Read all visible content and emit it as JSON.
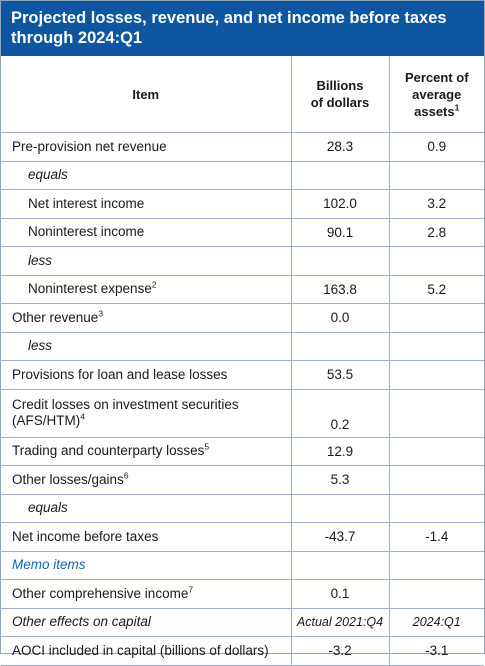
{
  "title": {
    "line1": "Projected losses, revenue, and net income before taxes",
    "line2": "through 2024:Q1"
  },
  "header": {
    "item": "Item",
    "billions_line1": "Billions",
    "billions_line2": "of dollars",
    "percent_line1": "Percent of",
    "percent_line2": "average",
    "percent_line3": "assets",
    "percent_note": "1"
  },
  "rows": [
    {
      "label": "Pre-provision net revenue",
      "note": "",
      "billions": "28.3",
      "percent": "0.9"
    },
    {
      "label": "equals",
      "note": "",
      "billions": "",
      "percent": ""
    },
    {
      "label": "Net interest income",
      "note": "",
      "billions": "102.0",
      "percent": "3.2"
    },
    {
      "label": "Noninterest income",
      "note": "",
      "billions": "90.1",
      "percent": "2.8"
    },
    {
      "label": "less",
      "note": "",
      "billions": "",
      "percent": ""
    },
    {
      "label": "Noninterest expense",
      "note": "2",
      "billions": "163.8",
      "percent": "5.2"
    },
    {
      "label": "Other revenue",
      "note": "3",
      "billions": "0.0",
      "percent": ""
    },
    {
      "label": "less",
      "note": "",
      "billions": "",
      "percent": ""
    },
    {
      "label": "Provisions for loan and lease losses",
      "note": "",
      "billions": "53.5",
      "percent": ""
    },
    {
      "label_line1": "Credit losses on investment securities",
      "label_line2": "(AFS/HTM)",
      "note": "4",
      "billions": "0.2",
      "percent": ""
    },
    {
      "label": "Trading and counterparty losses",
      "note": "5",
      "billions": "12.9",
      "percent": ""
    },
    {
      "label": "Other losses/gains",
      "note": "6",
      "billions": "5.3",
      "percent": ""
    },
    {
      "label": "equals",
      "note": "",
      "billions": "",
      "percent": ""
    },
    {
      "label": "Net income before taxes",
      "note": "",
      "billions": "-43.7",
      "percent": "-1.4"
    },
    {
      "label": "Memo items",
      "note": "",
      "billions": "",
      "percent": ""
    },
    {
      "label": "Other comprehensive income",
      "note": "7",
      "billions": "0.1",
      "percent": ""
    },
    {
      "label": "Other effects on capital",
      "note": "",
      "billions": "Actual 2021:Q4",
      "percent": "2024:Q1"
    },
    {
      "label": "AOCI included in capital (billions of dollars)",
      "note": "",
      "billions": "-3.2",
      "percent": "-3.1"
    }
  ],
  "colors": {
    "title_bg": "#0e57a0",
    "memo_text": "#1565b0",
    "rule": "#9fb3c8"
  }
}
